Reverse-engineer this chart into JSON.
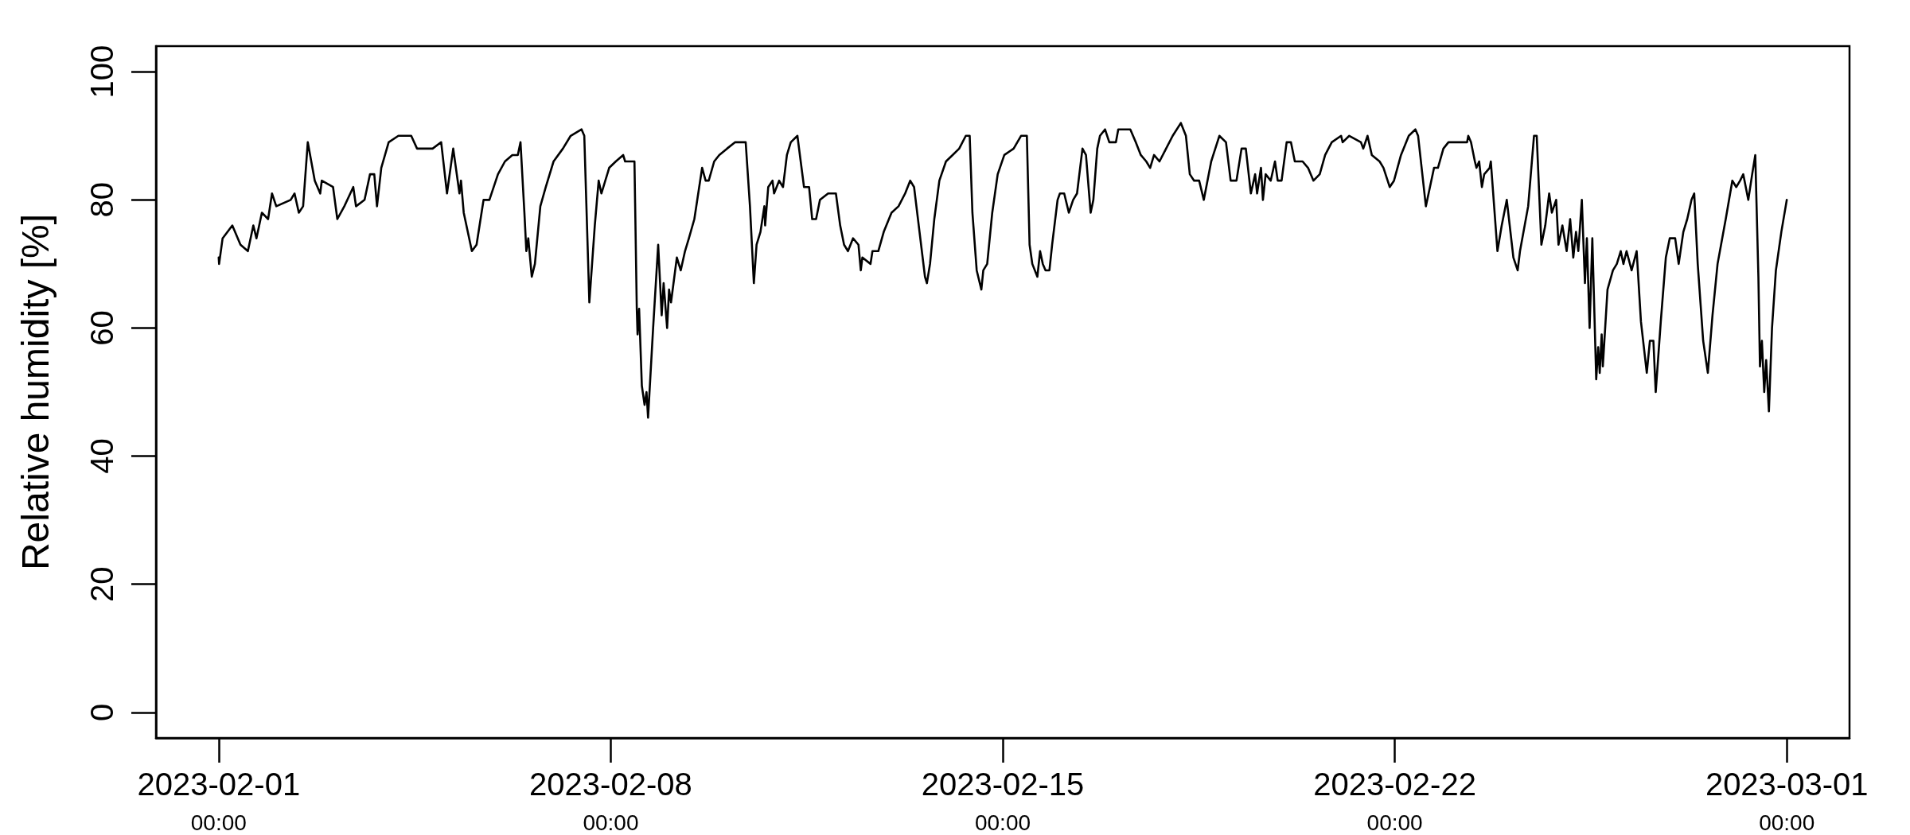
{
  "chart_data": {
    "type": "line",
    "ylabel": "Relative humidity [%]",
    "color": "#000000",
    "x": [
      "2023-02-01T00:00",
      "2023-02-01T00:10",
      "2023-02-01T01:40",
      "2023-02-01T05:50",
      "2023-02-01T09:20",
      "2023-02-01T12:30",
      "2023-02-01T14:50",
      "2023-02-01T16:10",
      "2023-02-01T18:30",
      "2023-02-01T21:10",
      "2023-02-01T22:50",
      "2023-02-02T00:40",
      "2023-02-02T06:50",
      "2023-02-02T08:30",
      "2023-02-02T10:20",
      "2023-02-02T12:10",
      "2023-02-02T14:10",
      "2023-02-02T17:10",
      "2023-02-02T19:30",
      "2023-02-02T20:10",
      "2023-02-03T01:00",
      "2023-02-03T02:50",
      "2023-02-03T05:50",
      "2023-02-03T09:40",
      "2023-02-03T10:50",
      "2023-02-03T14:30",
      "2023-02-03T16:50",
      "2023-02-03T18:40",
      "2023-02-03T19:50",
      "2023-02-03T21:40",
      "2023-02-04T00:50",
      "2023-02-04T05:00",
      "2023-02-04T10:30",
      "2023-02-04T13:00",
      "2023-02-04T19:40",
      "2023-02-04T23:20",
      "2023-02-05T01:50",
      "2023-02-05T04:30",
      "2023-02-05T07:10",
      "2023-02-05T07:50",
      "2023-02-05T09:00",
      "2023-02-05T12:30",
      "2023-02-05T14:30",
      "2023-02-05T17:30",
      "2023-02-05T20:00",
      "2023-02-05T23:40",
      "2023-02-06T02:40",
      "2023-02-06T05:50",
      "2023-02-06T08:10",
      "2023-02-06T09:20",
      "2023-02-06T11:00",
      "2023-02-06T11:50",
      "2023-02-06T12:40",
      "2023-02-06T14:10",
      "2023-02-06T15:30",
      "2023-02-06T17:50",
      "2023-02-06T20:10",
      "2023-02-06T23:30",
      "2023-02-07T03:30",
      "2023-02-07T06:50",
      "2023-02-07T11:30",
      "2023-02-07T12:40",
      "2023-02-07T14:50",
      "2023-02-07T17:10",
      "2023-02-07T18:50",
      "2023-02-07T20:00",
      "2023-02-07T23:20",
      "2023-02-08T02:10",
      "2023-02-08T05:20",
      "2023-02-08T06:10",
      "2023-02-08T10:10",
      "2023-02-08T11:10",
      "2023-02-08T11:30",
      "2023-02-08T12:10",
      "2023-02-08T13:20",
      "2023-02-08T14:30",
      "2023-02-08T15:20",
      "2023-02-08T16:00",
      "2023-02-08T18:10",
      "2023-02-08T20:20",
      "2023-02-08T21:50",
      "2023-02-08T22:40",
      "2023-02-09T00:10",
      "2023-02-09T01:00",
      "2023-02-09T01:50",
      "2023-02-09T04:20",
      "2023-02-09T06:00",
      "2023-02-09T07:50",
      "2023-02-09T09:30",
      "2023-02-09T11:50",
      "2023-02-09T15:10",
      "2023-02-09T16:40",
      "2023-02-09T18:00",
      "2023-02-09T20:20",
      "2023-02-09T22:30",
      "2023-02-10T01:50",
      "2023-02-10T05:20",
      "2023-02-10T09:50",
      "2023-02-10T11:40",
      "2023-02-10T13:20",
      "2023-02-10T14:30",
      "2023-02-10T16:10",
      "2023-02-10T17:50",
      "2023-02-10T18:10",
      "2023-02-10T19:30",
      "2023-02-10T21:20",
      "2023-02-10T22:00",
      "2023-02-11T00:10",
      "2023-02-11T01:50",
      "2023-02-11T03:30",
      "2023-02-11T05:10",
      "2023-02-11T08:00",
      "2023-02-11T10:50",
      "2023-02-11T13:00",
      "2023-02-11T14:20",
      "2023-02-11T16:00",
      "2023-02-11T17:40",
      "2023-02-11T21:10",
      "2023-02-12T00:30",
      "2023-02-12T02:20",
      "2023-02-12T04:00",
      "2023-02-12T05:40",
      "2023-02-12T07:50",
      "2023-02-12T10:10",
      "2023-02-12T11:10",
      "2023-02-12T11:50",
      "2023-02-12T15:20",
      "2023-02-12T16:10",
      "2023-02-12T18:40",
      "2023-02-12T21:00",
      "2023-02-13T00:20",
      "2023-02-13T03:20",
      "2023-02-13T06:10",
      "2023-02-13T08:20",
      "2023-02-13T10:00",
      "2023-02-13T12:20",
      "2023-02-13T14:40",
      "2023-02-13T15:30",
      "2023-02-13T16:50",
      "2023-02-13T18:40",
      "2023-02-13T20:50",
      "2023-02-13T23:40",
      "2023-02-14T02:30",
      "2023-02-14T05:20",
      "2023-02-14T08:10",
      "2023-02-14T09:50",
      "2023-02-14T11:00",
      "2023-02-14T12:50",
      "2023-02-14T14:50",
      "2023-02-14T15:40",
      "2023-02-14T17:20",
      "2023-02-14T19:30",
      "2023-02-14T21:50",
      "2023-02-15T00:40",
      "2023-02-15T04:40",
      "2023-02-15T07:50",
      "2023-02-15T10:20",
      "2023-02-15T11:30",
      "2023-02-15T12:40",
      "2023-02-15T14:50",
      "2023-02-15T16:00",
      "2023-02-15T17:10",
      "2023-02-15T18:20",
      "2023-02-15T20:00",
      "2023-02-15T21:10",
      "2023-02-15T23:30",
      "2023-02-16T00:30",
      "2023-02-16T02:20",
      "2023-02-16T04:20",
      "2023-02-16T06:10",
      "2023-02-16T07:50",
      "2023-02-16T10:10",
      "2023-02-16T11:40",
      "2023-02-16T13:40",
      "2023-02-16T14:50",
      "2023-02-16T16:30",
      "2023-02-16T17:40",
      "2023-02-16T19:50",
      "2023-02-16T21:40",
      "2023-02-17T00:30",
      "2023-02-17T01:30",
      "2023-02-17T06:40",
      "2023-02-17T09:00",
      "2023-02-17T11:10",
      "2023-02-17T13:30",
      "2023-02-17T15:10",
      "2023-02-17T16:50",
      "2023-02-17T19:10",
      "2023-02-17T22:00",
      "2023-02-18T00:50",
      "2023-02-18T04:20",
      "2023-02-18T06:30",
      "2023-02-18T08:10",
      "2023-02-18T10:00",
      "2023-02-18T12:10",
      "2023-02-18T14:10",
      "2023-02-18T17:20",
      "2023-02-18T20:50",
      "2023-02-18T23:40",
      "2023-02-19T01:40",
      "2023-02-19T04:10",
      "2023-02-19T06:20",
      "2023-02-19T08:10",
      "2023-02-19T10:20",
      "2023-02-19T12:10",
      "2023-02-19T13:00",
      "2023-02-19T14:40",
      "2023-02-19T15:30",
      "2023-02-19T16:40",
      "2023-02-19T18:50",
      "2023-02-19T20:40",
      "2023-02-19T21:50",
      "2023-02-19T23:30",
      "2023-02-20T01:40",
      "2023-02-20T03:30",
      "2023-02-20T05:10",
      "2023-02-20T08:30",
      "2023-02-20T10:50",
      "2023-02-20T13:10",
      "2023-02-20T15:50",
      "2023-02-20T18:10",
      "2023-02-20T21:00",
      "2023-02-21T01:00",
      "2023-02-21T01:40",
      "2023-02-21T04:30",
      "2023-02-21T09:30",
      "2023-02-21T10:30",
      "2023-02-21T12:20",
      "2023-02-21T14:10",
      "2023-02-21T17:30",
      "2023-02-21T19:10",
      "2023-02-21T21:50",
      "2023-02-21T23:40",
      "2023-02-22T02:40",
      "2023-02-22T06:00",
      "2023-02-22T08:50",
      "2023-02-22T10:00",
      "2023-02-22T13:20",
      "2023-02-22T16:50",
      "2023-02-22T18:30",
      "2023-02-22T20:50",
      "2023-02-22T23:00",
      "2023-02-23T07:00",
      "2023-02-23T07:30",
      "2023-02-23T08:40",
      "2023-02-23T10:20",
      "2023-02-23T11:00",
      "2023-02-23T12:10",
      "2023-02-23T13:20",
      "2023-02-23T14:20",
      "2023-02-23T16:40",
      "2023-02-23T17:10",
      "2023-02-23T20:00",
      "2023-02-23T21:50",
      "2023-02-24T00:00",
      "2023-02-24T02:50",
      "2023-02-24T04:40",
      "2023-02-24T05:40",
      "2023-02-24T09:10",
      "2023-02-24T11:40",
      "2023-02-24T12:50",
      "2023-02-24T14:50",
      "2023-02-24T16:30",
      "2023-02-24T18:10",
      "2023-02-24T19:20",
      "2023-02-24T21:10",
      "2023-02-24T22:10",
      "2023-02-24T23:50",
      "2023-02-25T01:40",
      "2023-02-25T03:10",
      "2023-02-25T04:30",
      "2023-02-25T05:40",
      "2023-02-25T06:40",
      "2023-02-25T08:10",
      "2023-02-25T09:30",
      "2023-02-25T10:20",
      "2023-02-25T11:30",
      "2023-02-25T12:40",
      "2023-02-25T14:20",
      "2023-02-25T15:10",
      "2023-02-25T15:50",
      "2023-02-25T16:40",
      "2023-02-25T17:10",
      "2023-02-25T19:10",
      "2023-02-25T21:30",
      "2023-02-25T23:10",
      "2023-02-26T00:50",
      "2023-02-26T02:00",
      "2023-02-26T03:20",
      "2023-02-26T05:30",
      "2023-02-26T07:40",
      "2023-02-26T09:30",
      "2023-02-26T12:00",
      "2023-02-26T13:20",
      "2023-02-26T14:50",
      "2023-02-26T15:50",
      "2023-02-26T18:00",
      "2023-02-26T20:10",
      "2023-02-26T21:50",
      "2023-02-27T00:10",
      "2023-02-27T01:40",
      "2023-02-27T03:40",
      "2023-02-27T05:20",
      "2023-02-27T07:10",
      "2023-02-27T08:20",
      "2023-02-27T09:50",
      "2023-02-27T12:10",
      "2023-02-27T14:10",
      "2023-02-27T16:10",
      "2023-02-27T18:20",
      "2023-02-27T19:50",
      "2023-02-27T21:50",
      "2023-02-28T00:40",
      "2023-02-28T02:20",
      "2023-02-28T04:00",
      "2023-02-28T05:20",
      "2023-02-28T07:30",
      "2023-02-28T09:10",
      "2023-02-28T10:30",
      "2023-02-28T11:50",
      "2023-02-28T12:30",
      "2023-02-28T13:20",
      "2023-02-28T14:20",
      "2023-02-28T15:10",
      "2023-02-28T16:20",
      "2023-02-28T17:40",
      "2023-02-28T19:20",
      "2023-02-28T21:40",
      "2023-03-01T00:00"
    ],
    "values": [
      71,
      70,
      74,
      76,
      73,
      72,
      76,
      74,
      78,
      77,
      81,
      79,
      80,
      81,
      78,
      79,
      89,
      83,
      81,
      83,
      82,
      77,
      79,
      82,
      79,
      80,
      84,
      84,
      79,
      85,
      89,
      90,
      90,
      88,
      88,
      89,
      81,
      88,
      81,
      83,
      78,
      72,
      73,
      80,
      80,
      84,
      86,
      87,
      87,
      89,
      78,
      72,
      74,
      68,
      70,
      79,
      82,
      86,
      88,
      90,
      91,
      90,
      64,
      76,
      83,
      81,
      85,
      86,
      87,
      86,
      86,
      63,
      59,
      63,
      51,
      48,
      50,
      46,
      60,
      73,
      62,
      67,
      60,
      66,
      64,
      71,
      69,
      72,
      74,
      77,
      85,
      83,
      83,
      86,
      87,
      88,
      89,
      89,
      79,
      67,
      73,
      75,
      79,
      76,
      82,
      83,
      81,
      83,
      82,
      87,
      89,
      90,
      82,
      82,
      77,
      77,
      80,
      81,
      81,
      76,
      73,
      72,
      74,
      73,
      69,
      71,
      70,
      72,
      72,
      75,
      78,
      79,
      81,
      83,
      82,
      75,
      68,
      67,
      70,
      77,
      83,
      86,
      87,
      88,
      90,
      90,
      78,
      69,
      66,
      69,
      70,
      78,
      84,
      87,
      88,
      90,
      90,
      73,
      70,
      68,
      72,
      70,
      69,
      69,
      73,
      80,
      81,
      81,
      78,
      80,
      81,
      88,
      87,
      78,
      80,
      88,
      90,
      91,
      89,
      89,
      91,
      91,
      89,
      87,
      86,
      85,
      87,
      86,
      88,
      90,
      92,
      90,
      84,
      83,
      83,
      80,
      86,
      90,
      89,
      83,
      83,
      88,
      88,
      81,
      84,
      81,
      85,
      80,
      84,
      83,
      86,
      83,
      83,
      89,
      89,
      86,
      86,
      85,
      83,
      84,
      87,
      89,
      90,
      89,
      90,
      89,
      88,
      90,
      87,
      86,
      85,
      82,
      83,
      87,
      90,
      91,
      90,
      79,
      85,
      85,
      88,
      89,
      89,
      90,
      89,
      86,
      85,
      86,
      82,
      84,
      85,
      86,
      72,
      76,
      80,
      71,
      69,
      72,
      79,
      90,
      90,
      73,
      76,
      81,
      78,
      80,
      73,
      76,
      72,
      77,
      71,
      75,
      72,
      80,
      67,
      74,
      60,
      74,
      52,
      57,
      53,
      59,
      54,
      66,
      69,
      70,
      72,
      70,
      72,
      69,
      72,
      61,
      53,
      58,
      58,
      50,
      61,
      71,
      74,
      74,
      70,
      75,
      77,
      80,
      81,
      70,
      58,
      53,
      62,
      70,
      73,
      77,
      83,
      82,
      83,
      84,
      80,
      84,
      87,
      68,
      54,
      58,
      50,
      55,
      47,
      60,
      69,
      75,
      80
    ],
    "xlim": [
      "2023-01-30T21:07",
      "2023-03-02T02:53"
    ],
    "xticks": [
      {
        "value": "2023-02-01T00:00",
        "label": "2023-02-01\n00:00"
      },
      {
        "value": "2023-02-08T00:00",
        "label": "2023-02-08\n00:00"
      },
      {
        "value": "2023-02-15T00:00",
        "label": "2023-02-15\n00:00"
      },
      {
        "value": "2023-02-22T00:00",
        "label": "2023-02-22\n00:00"
      },
      {
        "value": "2023-03-01T00:00",
        "label": "2023-03-01\n00:00"
      }
    ],
    "ylim": [
      -4,
      104
    ],
    "yticks": [
      0,
      20,
      40,
      60,
      80,
      100
    ]
  }
}
